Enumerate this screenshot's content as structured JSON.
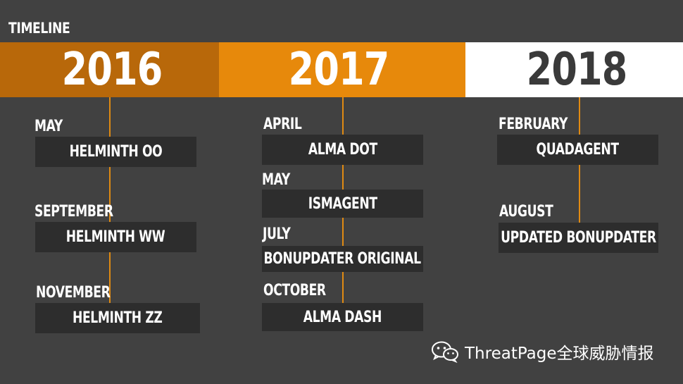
{
  "title": "TIMELINE",
  "colors": {
    "background": "#414141",
    "band_2016": "#b8680a",
    "band_2017": "#e7890b",
    "band_2018": "#ffffff",
    "connector": "#e08a12",
    "box": "#2d2d2d"
  },
  "years": [
    {
      "year": "2016",
      "events": [
        {
          "month": "MAY",
          "label": "HELMINTH OO"
        },
        {
          "month": "SEPTEMBER",
          "label": "HELMINTH WW"
        },
        {
          "month": "NOVEMBER",
          "label": "HELMINTH ZZ"
        }
      ]
    },
    {
      "year": "2017",
      "events": [
        {
          "month": "APRIL",
          "label": "ALMA DOT"
        },
        {
          "month": "MAY",
          "label": "ISMAGENT"
        },
        {
          "month": "JULY",
          "label": "BONUPDATER ORIGINAL"
        },
        {
          "month": "OCTOBER",
          "label": "ALMA DASH"
        }
      ]
    },
    {
      "year": "2018",
      "events": [
        {
          "month": "FEBRUARY",
          "label": "QUADAGENT"
        },
        {
          "month": "AUGUST",
          "label": "UPDATED BONUPDATER"
        }
      ]
    }
  ],
  "watermark": {
    "text": "ThreatPage全球威胁情报",
    "icon": "wechat-icon"
  }
}
